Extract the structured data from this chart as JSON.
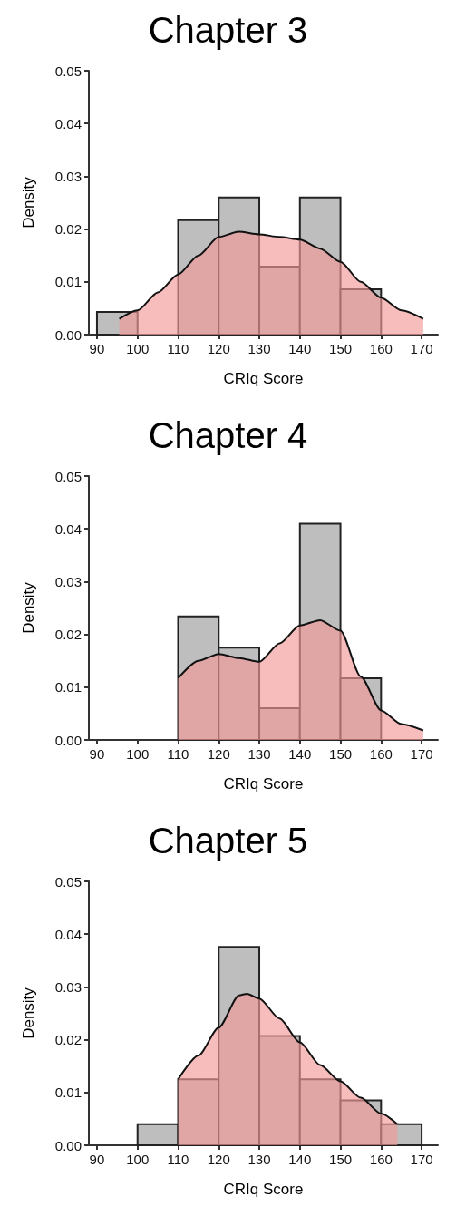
{
  "chart_data": [
    {
      "type": "histogram",
      "title": "Chapter 3",
      "xlabel": "CRIq Score",
      "ylabel": "Density",
      "bins": [
        90,
        100,
        110,
        120,
        130,
        140,
        150,
        160
      ],
      "xlim": [
        88,
        174
      ],
      "xticks": [
        90,
        100,
        110,
        120,
        130,
        140,
        150,
        160,
        170
      ],
      "ylim": [
        0,
        0.05
      ],
      "yticks": [
        {
          "value": 0,
          "label": "0.00"
        },
        {
          "value": 0.01,
          "label": "0.01"
        },
        {
          "value": 0.02,
          "label": "0.02"
        },
        {
          "value": 0.03,
          "label": "0.03"
        },
        {
          "value": 0.04,
          "label": "0.04"
        },
        {
          "value": 0.05,
          "label": "0.05"
        }
      ],
      "series": [
        {
          "color": "#bebebe",
          "values": [
            0.0043,
            null,
            0.0217,
            0.026,
            0.0129,
            0.026,
            0.0086
          ]
        },
        {
          "type": "area",
          "color": "#f29a9a",
          "x": [
            95.5,
            100,
            105,
            110,
            115,
            120,
            125,
            130,
            135,
            140,
            145,
            150,
            155,
            160,
            165,
            170.4
          ],
          "values": [
            0.003,
            0.0046,
            0.008,
            0.0114,
            0.015,
            0.0185,
            0.0195,
            0.019,
            0.0185,
            0.018,
            0.0163,
            0.0138,
            0.01,
            0.007,
            0.0046,
            0.003
          ]
        }
      ]
    },
    {
      "type": "histogram",
      "title": "Chapter 4",
      "xlabel": "CRIq Score",
      "ylabel": "Density",
      "bins": [
        110,
        120,
        130,
        140,
        150,
        160
      ],
      "xlim": [
        88,
        174
      ],
      "xticks": [
        90,
        100,
        110,
        120,
        130,
        140,
        150,
        160,
        170
      ],
      "ylim": [
        0,
        0.05
      ],
      "yticks": [
        {
          "value": 0,
          "label": "0.00"
        },
        {
          "value": 0.01,
          "label": "0.01"
        },
        {
          "value": 0.02,
          "label": "0.02"
        },
        {
          "value": 0.03,
          "label": "0.03"
        },
        {
          "value": 0.04,
          "label": "0.04"
        },
        {
          "value": 0.05,
          "label": "0.05"
        }
      ],
      "series": [
        {
          "color": "#bebebe",
          "values": [
            0.0234,
            0.0175,
            0.006,
            0.041,
            0.0117
          ]
        },
        {
          "type": "area",
          "color": "#f29a9a",
          "x": [
            110,
            115,
            120,
            125,
            130,
            135,
            140,
            145,
            150,
            155,
            160,
            165,
            170.4
          ],
          "values": [
            0.0117,
            0.015,
            0.0163,
            0.0155,
            0.0148,
            0.0183,
            0.0217,
            0.0227,
            0.0207,
            0.012,
            0.0056,
            0.003,
            0.0018
          ]
        }
      ]
    },
    {
      "type": "histogram",
      "title": "Chapter 5",
      "xlabel": "CRIq Score",
      "ylabel": "Density",
      "bins": [
        100,
        110,
        120,
        130,
        140,
        150,
        160,
        170
      ],
      "xlim": [
        88,
        174
      ],
      "xticks": [
        90,
        100,
        110,
        120,
        130,
        140,
        150,
        160,
        170
      ],
      "ylim": [
        0,
        0.05
      ],
      "yticks": [
        {
          "value": 0,
          "label": "0.00"
        },
        {
          "value": 0.01,
          "label": "0.01"
        },
        {
          "value": 0.02,
          "label": "0.02"
        },
        {
          "value": 0.03,
          "label": "0.03"
        },
        {
          "value": 0.04,
          "label": "0.04"
        },
        {
          "value": 0.05,
          "label": "0.05"
        }
      ],
      "series": [
        {
          "color": "#bebebe",
          "values": [
            0.004,
            0.0125,
            0.0376,
            0.0207,
            0.0125,
            0.0085,
            0.004
          ]
        },
        {
          "type": "area",
          "color": "#f29a9a",
          "x": [
            110,
            115,
            120,
            125,
            127,
            130,
            135,
            140,
            145,
            150,
            155,
            160,
            164
          ],
          "values": [
            0.0125,
            0.017,
            0.0223,
            0.0284,
            0.0287,
            0.0278,
            0.024,
            0.0195,
            0.0152,
            0.0121,
            0.009,
            0.006,
            0.004
          ]
        }
      ]
    }
  ]
}
